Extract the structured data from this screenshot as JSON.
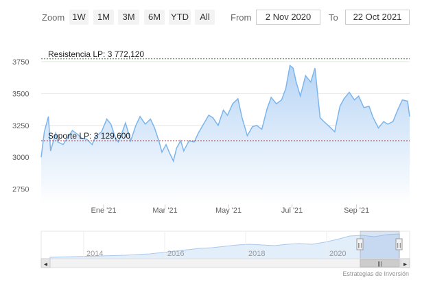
{
  "toolbar": {
    "zoom_label": "Zoom",
    "buttons": [
      "1W",
      "1M",
      "3M",
      "6M",
      "YTD",
      "All"
    ],
    "from_label": "From",
    "from_value": "2 Nov 2020",
    "to_label": "To",
    "to_value": "22 Oct 2021"
  },
  "chart_data": {
    "type": "area",
    "x_tick_labels": [
      "Ene '21",
      "Mar '21",
      "May '21",
      "Jul '21",
      "Sep '21"
    ],
    "x_ticks": [
      "2021-01-01",
      "2021-03-01",
      "2021-05-01",
      "2021-07-01",
      "2021-09-01"
    ],
    "xlim": [
      "2020-11-02",
      "2021-10-22"
    ],
    "y_ticks": [
      2750,
      3000,
      3250,
      3500,
      3750
    ],
    "ylim": [
      2630,
      3900
    ],
    "grid": true,
    "colors": {
      "line": "#7cb5ec",
      "fill_top": "#b7d5f5",
      "fill_bottom": "#ffffff",
      "resistance": "#2e7d32",
      "support": "#b71c1c"
    },
    "plot_lines": [
      {
        "label": "Resistencia LP: 3 772,120",
        "value": 3772.12
      },
      {
        "label": "Soporte LP: 3 129,600",
        "value": 3129.6
      }
    ],
    "series": [
      {
        "x": [
          "2020-11-02",
          "2020-11-05",
          "2020-11-09",
          "2020-11-11",
          "2020-11-16",
          "2020-11-18",
          "2020-11-23",
          "2020-11-27",
          "2020-12-02",
          "2020-12-07",
          "2020-12-11",
          "2020-12-16",
          "2020-12-21",
          "2020-12-24",
          "2020-12-30",
          "2021-01-04",
          "2021-01-08",
          "2021-01-12",
          "2021-01-15",
          "2021-01-19",
          "2021-01-22",
          "2021-01-27",
          "2021-02-01",
          "2021-02-05",
          "2021-02-10",
          "2021-02-15",
          "2021-02-19",
          "2021-02-23",
          "2021-02-26",
          "2021-03-02",
          "2021-03-05",
          "2021-03-09",
          "2021-03-12",
          "2021-03-16",
          "2021-03-19",
          "2021-03-24",
          "2021-03-29",
          "2021-04-02",
          "2021-04-07",
          "2021-04-12",
          "2021-04-16",
          "2021-04-21",
          "2021-04-26",
          "2021-04-30",
          "2021-05-05",
          "2021-05-10",
          "2021-05-14",
          "2021-05-19",
          "2021-05-24",
          "2021-05-28",
          "2021-06-02",
          "2021-06-07",
          "2021-06-11",
          "2021-06-16",
          "2021-06-21",
          "2021-06-25",
          "2021-06-29",
          "2021-07-02",
          "2021-07-05",
          "2021-07-09",
          "2021-07-14",
          "2021-07-19",
          "2021-07-23",
          "2021-07-28",
          "2021-08-02",
          "2021-08-06",
          "2021-08-11",
          "2021-08-16",
          "2021-08-20",
          "2021-08-25",
          "2021-08-30",
          "2021-09-03",
          "2021-09-08",
          "2021-09-13",
          "2021-09-17",
          "2021-09-22",
          "2021-09-27",
          "2021-10-01",
          "2021-10-06",
          "2021-10-11",
          "2021-10-15",
          "2021-10-20",
          "2021-10-22"
        ],
        "y": [
          3000,
          3200,
          3320,
          3050,
          3190,
          3120,
          3100,
          3150,
          3210,
          3180,
          3150,
          3140,
          3100,
          3160,
          3200,
          3300,
          3260,
          3160,
          3120,
          3200,
          3270,
          3130,
          3250,
          3320,
          3260,
          3300,
          3230,
          3130,
          3040,
          3100,
          3040,
          2970,
          3070,
          3130,
          3050,
          3130,
          3120,
          3190,
          3260,
          3330,
          3310,
          3250,
          3370,
          3330,
          3420,
          3460,
          3310,
          3170,
          3240,
          3250,
          3220,
          3380,
          3470,
          3420,
          3450,
          3540,
          3720,
          3700,
          3590,
          3480,
          3640,
          3590,
          3700,
          3310,
          3270,
          3240,
          3200,
          3400,
          3460,
          3510,
          3450,
          3480,
          3390,
          3400,
          3310,
          3230,
          3280,
          3260,
          3280,
          3380,
          3450,
          3440,
          3320
        ]
      }
    ]
  },
  "navigator": {
    "labels": [
      "2014",
      "2016",
      "2018",
      "2020"
    ],
    "credit": "Estrategias de Inversión",
    "scroll_left": "◂",
    "scroll_right": "▸",
    "scroll_grip": "|||",
    "handle_glyph": "|||"
  }
}
